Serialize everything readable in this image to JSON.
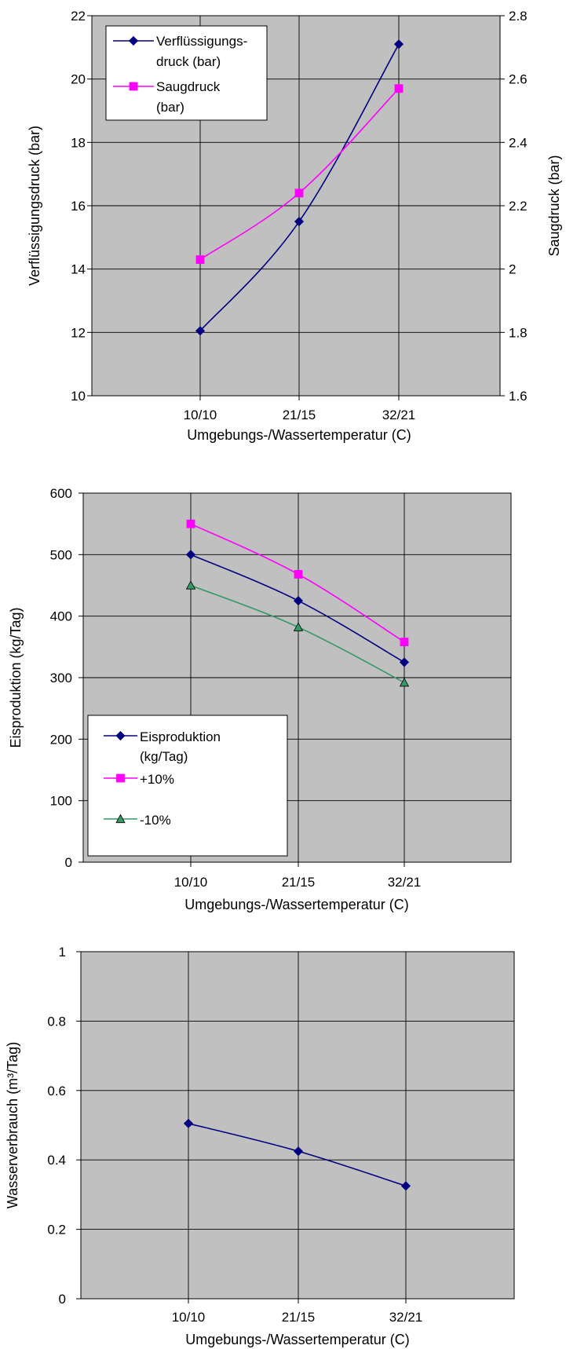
{
  "chart_data": [
    {
      "type": "line",
      "categories": [
        "10/10",
        "21/15",
        "32/21"
      ],
      "xlabel": "Umgebungs-/Wassertemperatur (C)",
      "ylabel": "Verflüssigungsdruck (bar)",
      "y2label": "Saugdruck (bar)",
      "ylim": [
        10,
        22
      ],
      "y2lim": [
        1.6,
        2.8
      ],
      "yticks": [
        "10",
        "12",
        "14",
        "16",
        "18",
        "20",
        "22"
      ],
      "y2ticks": [
        "1.6",
        "1.8",
        "2",
        "2.2",
        "2.4",
        "2.6",
        "2.8"
      ],
      "grid": true,
      "legend_position": "top-left",
      "series": [
        {
          "legend_lines": [
            "Verflüssigungs-",
            "druck (bar)"
          ],
          "axis": "left",
          "values": [
            12.05,
            15.5,
            21.1
          ],
          "color": "#000080",
          "marker": "diamond"
        },
        {
          "legend_lines": [
            "Saugdruck",
            "(bar)"
          ],
          "axis": "right",
          "values": [
            2.03,
            2.24,
            2.57
          ],
          "color": "#ff00ff",
          "marker": "square"
        }
      ]
    },
    {
      "type": "line",
      "categories": [
        "10/10",
        "21/15",
        "32/21"
      ],
      "xlabel": "Umgebungs-/Wassertemperatur (C)",
      "ylabel": "Eisproduktion (kg/Tag)",
      "ylim": [
        0,
        600
      ],
      "yticks": [
        "0",
        "100",
        "200",
        "300",
        "400",
        "500",
        "600"
      ],
      "grid": true,
      "legend_position": "bottom-left",
      "series": [
        {
          "legend_lines": [
            "Eisproduktion",
            "(kg/Tag)"
          ],
          "values": [
            500,
            425,
            325
          ],
          "color": "#000080",
          "marker": "diamond"
        },
        {
          "legend_lines": [
            "+10%"
          ],
          "values": [
            550,
            468,
            358
          ],
          "color": "#ff00ff",
          "marker": "square"
        },
        {
          "legend_lines": [
            "-10%"
          ],
          "values": [
            450,
            382,
            292
          ],
          "color": "#339966",
          "marker": "triangle"
        }
      ]
    },
    {
      "type": "line",
      "categories": [
        "10/10",
        "21/15",
        "32/21"
      ],
      "xlabel": "Umgebungs-/Wassertemperatur (C)",
      "ylabel": "Wasserverbrauch (m³/Tag)",
      "ylim": [
        0,
        1
      ],
      "yticks": [
        "0",
        "0.2",
        "0.4",
        "0.6",
        "0.8",
        "1"
      ],
      "grid": true,
      "series": [
        {
          "values": [
            0.505,
            0.425,
            0.325
          ],
          "color": "#000080",
          "marker": "diamond"
        }
      ]
    }
  ]
}
